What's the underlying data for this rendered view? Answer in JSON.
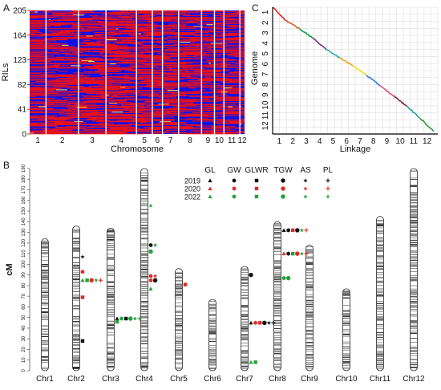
{
  "panel_labels": {
    "a": "A",
    "b": "B",
    "c": "C"
  },
  "chart_data": [
    {
      "type": "heatmap",
      "panel": "A",
      "xlabel": "Chromosome",
      "ylabel": "RILs",
      "categories": [
        "1",
        "2",
        "3",
        "4",
        "5",
        "6",
        "7",
        "8",
        "9",
        "10",
        "11",
        "12"
      ],
      "yticks": [
        0,
        41,
        82,
        123,
        164,
        205
      ],
      "ylim": [
        0,
        205
      ],
      "rows": 205,
      "legend": "none",
      "colors": {
        "parent_a": "#e8111b",
        "parent_b": "#1010e6",
        "other": "#f2e65a",
        "separator": "#ffffff"
      }
    },
    {
      "type": "scatter",
      "panel": "C",
      "xlabel": "Linkage",
      "ylabel": "Genome",
      "x_ticks": [
        "1",
        "2",
        "3",
        "4",
        "5",
        "6",
        "7",
        "8",
        "9",
        "10",
        "11",
        "12"
      ],
      "y_ticks": [
        "1",
        "2",
        "3",
        "4",
        "5",
        "6",
        "7",
        "8",
        "9",
        "10",
        "11",
        "12"
      ],
      "y_direction": "top-to-bottom",
      "grid": true,
      "series": [
        {
          "chr": "1",
          "x": [
            0.0,
            1.0
          ],
          "y": [
            0.0,
            1.3
          ],
          "color": "#e8232b"
        },
        {
          "chr": "2",
          "x": [
            1.0,
            2.0
          ],
          "y": [
            1.3,
            2.1
          ],
          "color": "#d8652a"
        },
        {
          "chr": "3",
          "x": [
            2.0,
            3.0
          ],
          "y": [
            2.1,
            3.0
          ],
          "color": "#1a9a46"
        },
        {
          "chr": "4",
          "x": [
            3.0,
            4.0
          ],
          "y": [
            3.0,
            4.1
          ],
          "color": "#7d2f85"
        },
        {
          "chr": "5",
          "x": [
            4.0,
            5.0
          ],
          "y": [
            4.1,
            4.9
          ],
          "color": "#2bb1a8"
        },
        {
          "chr": "6",
          "x": [
            5.0,
            6.0
          ],
          "y": [
            4.9,
            5.7
          ],
          "color": "#e6a620"
        },
        {
          "chr": "7",
          "x": [
            6.0,
            7.0
          ],
          "y": [
            5.7,
            6.6
          ],
          "color": "#f2e21c"
        },
        {
          "chr": "8",
          "x": [
            7.0,
            8.0
          ],
          "y": [
            6.6,
            7.6
          ],
          "color": "#2e7fcc"
        },
        {
          "chr": "9",
          "x": [
            8.0,
            9.0
          ],
          "y": [
            7.6,
            8.6
          ],
          "color": "#d8527a"
        },
        {
          "chr": "10",
          "x": [
            9.0,
            10.0
          ],
          "y": [
            8.6,
            9.6
          ],
          "color": "#8b2a3f"
        },
        {
          "chr": "11",
          "x": [
            10.0,
            11.0
          ],
          "y": [
            9.6,
            10.8
          ],
          "color": "#2aa0a0"
        },
        {
          "chr": "12",
          "x": [
            11.0,
            12.0
          ],
          "y": [
            10.8,
            12.0
          ],
          "color": "#2f9a3c"
        }
      ]
    },
    {
      "type": "scatter",
      "panel": "B",
      "ylabel": "cM",
      "ylim": [
        0,
        190
      ],
      "yticks": [
        0,
        10,
        20,
        30,
        40,
        50,
        60,
        70,
        80,
        90,
        100,
        110,
        120,
        130,
        140,
        150,
        160,
        170,
        180,
        190
      ],
      "chromosomes": [
        {
          "name": "Chr1",
          "length": 124
        },
        {
          "name": "Chr2",
          "length": 136
        },
        {
          "name": "Chr3",
          "length": 134
        },
        {
          "name": "Chr4",
          "length": 190
        },
        {
          "name": "Chr5",
          "length": 96
        },
        {
          "name": "Chr6",
          "length": 67
        },
        {
          "name": "Chr7",
          "length": 98
        },
        {
          "name": "Chr8",
          "length": 140
        },
        {
          "name": "Chr9",
          "length": 118
        },
        {
          "name": "Chr10",
          "length": 77
        },
        {
          "name": "Chr11",
          "length": 145
        },
        {
          "name": "Chr12",
          "length": 190
        }
      ],
      "legend": {
        "traits": [
          "GL",
          "GW",
          "GLWR",
          "TGW",
          "AS",
          "PL"
        ],
        "years": [
          "2019",
          "2020",
          "2022"
        ],
        "year_colors": {
          "2019": "#111111",
          "2020": "#e02a23",
          "2022": "#22a33a"
        },
        "trait_shapes": {
          "GL": "triangle",
          "GW": "hexagon",
          "GLWR": "square",
          "TGW": "circle",
          "AS": "star",
          "PL": "plus"
        },
        "placement": "top-center"
      },
      "qtl": [
        {
          "chr": "Chr2",
          "cM": 107,
          "trait": "AS",
          "year": "2019"
        },
        {
          "chr": "Chr2",
          "cM": 93,
          "trait": "GW",
          "year": "2020"
        },
        {
          "chr": "Chr2",
          "cM": 85,
          "trait": "GL",
          "year": "2022"
        },
        {
          "chr": "Chr2",
          "cM": 85,
          "trait": "GLWR",
          "year": "2022"
        },
        {
          "chr": "Chr2",
          "cM": 85,
          "trait": "TGW",
          "year": "2020"
        },
        {
          "chr": "Chr2",
          "cM": 85,
          "trait": "AS",
          "year": "2022"
        },
        {
          "chr": "Chr2",
          "cM": 85,
          "trait": "PL",
          "year": "2020"
        },
        {
          "chr": "Chr2",
          "cM": 69,
          "trait": "GLWR",
          "year": "2020"
        },
        {
          "chr": "Chr2",
          "cM": 28,
          "trait": "GLWR",
          "year": "2019"
        },
        {
          "chr": "Chr3",
          "cM": 49,
          "trait": "GL",
          "year": "2019"
        },
        {
          "chr": "Chr3",
          "cM": 49,
          "trait": "GW",
          "year": "2022"
        },
        {
          "chr": "Chr3",
          "cM": 49,
          "trait": "GLWR",
          "year": "2019"
        },
        {
          "chr": "Chr3",
          "cM": 49,
          "trait": "TGW",
          "year": "2022"
        },
        {
          "chr": "Chr3",
          "cM": 49,
          "trait": "AS",
          "year": "2022"
        },
        {
          "chr": "Chr3",
          "cM": 49,
          "trait": "PL",
          "year": "2022"
        },
        {
          "chr": "Chr3",
          "cM": 46,
          "trait": "GLWR",
          "year": "2022"
        },
        {
          "chr": "Chr4",
          "cM": 155,
          "trait": "AS",
          "year": "2022"
        },
        {
          "chr": "Chr4",
          "cM": 118,
          "trait": "GW",
          "year": "2019"
        },
        {
          "chr": "Chr4",
          "cM": 118,
          "trait": "AS",
          "year": "2022"
        },
        {
          "chr": "Chr4",
          "cM": 112,
          "trait": "TGW",
          "year": "2022"
        },
        {
          "chr": "Chr4",
          "cM": 89,
          "trait": "GW",
          "year": "2020"
        },
        {
          "chr": "Chr4",
          "cM": 89,
          "trait": "AS",
          "year": "2020"
        },
        {
          "chr": "Chr4",
          "cM": 85,
          "trait": "TGW",
          "year": "2019"
        },
        {
          "chr": "Chr4",
          "cM": 85,
          "trait": "GW",
          "year": "2020"
        },
        {
          "chr": "Chr4",
          "cM": 77,
          "trait": "GL",
          "year": "2022"
        },
        {
          "chr": "Chr5",
          "cM": 81,
          "trait": "GLWR",
          "year": "2020"
        },
        {
          "chr": "Chr7",
          "cM": 90,
          "trait": "TGW",
          "year": "2019"
        },
        {
          "chr": "Chr7",
          "cM": 45,
          "trait": "GL",
          "year": "2019"
        },
        {
          "chr": "Chr7",
          "cM": 45,
          "trait": "GW",
          "year": "2020"
        },
        {
          "chr": "Chr7",
          "cM": 45,
          "trait": "GLWR",
          "year": "2020"
        },
        {
          "chr": "Chr7",
          "cM": 45,
          "trait": "TGW",
          "year": "2019"
        },
        {
          "chr": "Chr7",
          "cM": 45,
          "trait": "AS",
          "year": "2019"
        },
        {
          "chr": "Chr7",
          "cM": 45,
          "trait": "PL",
          "year": "2019"
        },
        {
          "chr": "Chr7",
          "cM": 8,
          "trait": "GL",
          "year": "2022"
        },
        {
          "chr": "Chr7",
          "cM": 8,
          "trait": "GLWR",
          "year": "2022"
        },
        {
          "chr": "Chr8",
          "cM": 132,
          "trait": "GW",
          "year": "2019"
        },
        {
          "chr": "Chr8",
          "cM": 132,
          "trait": "GLWR",
          "year": "2020"
        },
        {
          "chr": "Chr8",
          "cM": 132,
          "trait": "TGW",
          "year": "2019"
        },
        {
          "chr": "Chr8",
          "cM": 132,
          "trait": "AS",
          "year": "2022"
        },
        {
          "chr": "Chr8",
          "cM": 132,
          "trait": "PL",
          "year": "2020"
        },
        {
          "chr": "Chr8",
          "cM": 132,
          "trait": "GL",
          "year": "2019"
        },
        {
          "chr": "Chr8",
          "cM": 110,
          "trait": "GL",
          "year": "2020"
        },
        {
          "chr": "Chr8",
          "cM": 110,
          "trait": "GW",
          "year": "2019"
        },
        {
          "chr": "Chr8",
          "cM": 110,
          "trait": "GLWR",
          "year": "2022"
        },
        {
          "chr": "Chr8",
          "cM": 110,
          "trait": "TGW",
          "year": "2020"
        },
        {
          "chr": "Chr8",
          "cM": 110,
          "trait": "AS",
          "year": "2022"
        },
        {
          "chr": "Chr8",
          "cM": 110,
          "trait": "PL",
          "year": "2020"
        },
        {
          "chr": "Chr8",
          "cM": 87,
          "trait": "TGW",
          "year": "2022"
        },
        {
          "chr": "Chr8",
          "cM": 87,
          "trait": "GW",
          "year": "2022"
        }
      ]
    }
  ]
}
